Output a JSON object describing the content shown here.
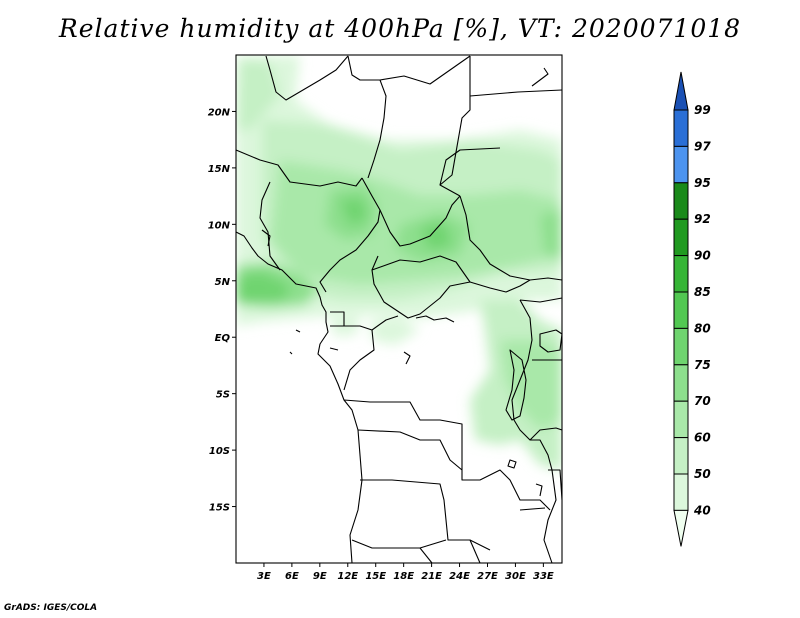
{
  "title": "Relative humidity at 400hPa [%], VT: 2020071018",
  "credit": "GrADS: IGES/COLA",
  "map": {
    "variable": "Relative humidity",
    "level": "400hPa",
    "unit": "%",
    "valid_time": "2020071018",
    "lat_range": [
      -20,
      25
    ],
    "lon_range": [
      0,
      35
    ],
    "lat_tick_labels": [
      "20N",
      "15N",
      "10N",
      "5N",
      "EQ",
      "5S",
      "10S",
      "15S"
    ],
    "lat_tick_values": [
      20,
      15,
      10,
      5,
      0,
      -5,
      -10,
      -15
    ],
    "lon_tick_labels": [
      "3E",
      "6E",
      "9E",
      "12E",
      "15E",
      "18E",
      "21E",
      "24E",
      "27E",
      "30E",
      "33E"
    ],
    "lon_tick_values": [
      3,
      6,
      9,
      12,
      15,
      18,
      21,
      24,
      27,
      30,
      33
    ]
  },
  "colorbar": {
    "labels": [
      "40",
      "50",
      "60",
      "70",
      "75",
      "80",
      "85",
      "90",
      "92",
      "95",
      "97",
      "99"
    ],
    "colors": [
      "#f0fff0",
      "#dcf7dc",
      "#c5f0c5",
      "#a9e8a9",
      "#8ddf8d",
      "#6fd46f",
      "#52c852",
      "#36b536",
      "#209a20",
      "#1a8a1a",
      "#4d94ef",
      "#2a6fd6",
      "#1a50b4"
    ]
  }
}
